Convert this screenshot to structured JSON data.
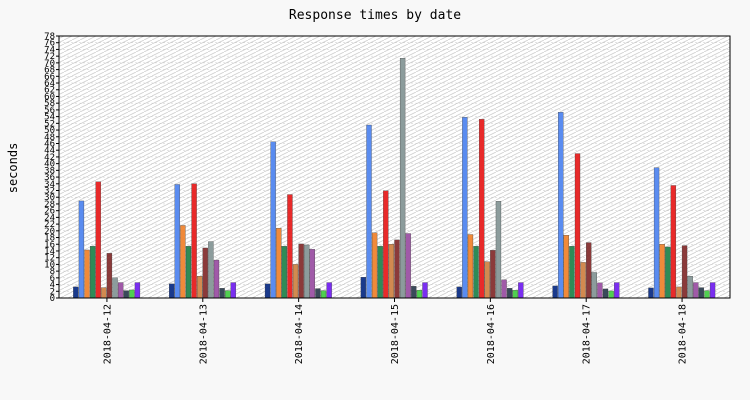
{
  "chart_data": {
    "type": "bar",
    "title": "Response times by date",
    "ylabel": "seconds",
    "xlabel": "",
    "ylim": [
      0,
      78
    ],
    "ytick_step": 2,
    "grid": true,
    "categories": [
      "2018-04-12",
      "2018-04-13",
      "2018-04-14",
      "2018-04-15",
      "2018-04-16",
      "2018-04-17",
      "2018-04-18"
    ],
    "series": [
      {
        "color": "#1a3a8c",
        "values": [
          3.3,
          4.2,
          4.2,
          6.2,
          3.3,
          3.6,
          3.0
        ]
      },
      {
        "color": "#5a8cf0",
        "values": [
          28.9,
          33.8,
          46.5,
          51.5,
          53.8,
          55.3,
          38.8
        ]
      },
      {
        "color": "#f08a3a",
        "values": [
          14.3,
          21.6,
          20.8,
          19.4,
          18.9,
          18.7,
          16.0
        ]
      },
      {
        "color": "#2e8b57",
        "values": [
          15.4,
          15.4,
          15.4,
          15.4,
          15.4,
          15.4,
          15.2
        ]
      },
      {
        "color": "#e82a2a",
        "values": [
          34.6,
          34.0,
          30.8,
          31.9,
          53.2,
          43.0,
          33.5
        ]
      },
      {
        "color": "#d28a50",
        "values": [
          3.1,
          6.5,
          10.0,
          16.0,
          10.8,
          10.6,
          3.3
        ]
      },
      {
        "color": "#8b3a3a",
        "values": [
          13.3,
          14.9,
          16.1,
          17.3,
          14.2,
          16.5,
          15.6
        ]
      },
      {
        "color": "#8c9c9c",
        "values": [
          6.0,
          16.8,
          15.8,
          71.4,
          28.8,
          7.6,
          6.5
        ]
      },
      {
        "color": "#a05aa8",
        "values": [
          4.6,
          11.3,
          14.5,
          19.2,
          5.4,
          4.5,
          4.6
        ]
      },
      {
        "color": "#3a4a5a",
        "values": [
          2.2,
          2.9,
          2.8,
          3.5,
          2.9,
          2.7,
          3.1
        ]
      },
      {
        "color": "#50d050",
        "values": [
          2.4,
          2.2,
          2.2,
          2.3,
          2.3,
          2.1,
          2.2
        ]
      },
      {
        "color": "#7a2ef0",
        "values": [
          4.6,
          4.6,
          4.6,
          4.6,
          4.6,
          4.6,
          4.6
        ]
      }
    ]
  }
}
